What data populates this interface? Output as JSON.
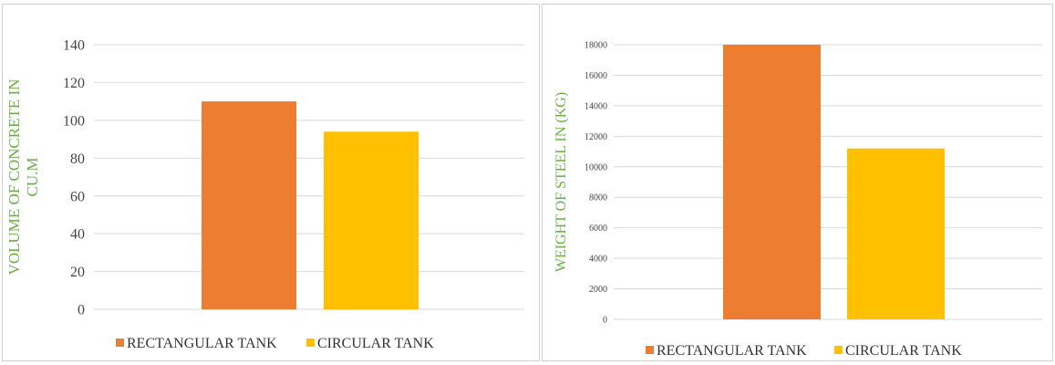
{
  "colors": {
    "rectangular": "#ED7D31",
    "circular": "#FFC000",
    "grid": "#d9d9d9",
    "axis_label": "#6aae44"
  },
  "chart_data": [
    {
      "type": "bar",
      "ylabel_lines": [
        "VOLUME OF CONCRETE IN",
        "CU.M"
      ],
      "ylim": [
        0,
        140
      ],
      "yticks": [
        "0",
        "20",
        "40",
        "60",
        "80",
        "100",
        "120",
        "140"
      ],
      "grid": true,
      "legend_position": "bottom",
      "series": [
        {
          "name": "RECTANGULAR TANK",
          "values": [
            110
          ]
        },
        {
          "name": "CIRCULAR TANK",
          "values": [
            94
          ]
        }
      ]
    },
    {
      "type": "bar",
      "ylabel_lines": [
        "WEIGHT OF STEEL IN (KG)"
      ],
      "ylim": [
        0,
        18000
      ],
      "yticks": [
        "0",
        "2000",
        "4000",
        "6000",
        "8000",
        "10000",
        "12000",
        "14000",
        "16000",
        "18000"
      ],
      "grid": true,
      "legend_position": "bottom",
      "series": [
        {
          "name": "RECTANGULAR TANK",
          "values": [
            18000
          ]
        },
        {
          "name": "CIRCULAR TANK",
          "values": [
            11200
          ]
        }
      ]
    }
  ]
}
